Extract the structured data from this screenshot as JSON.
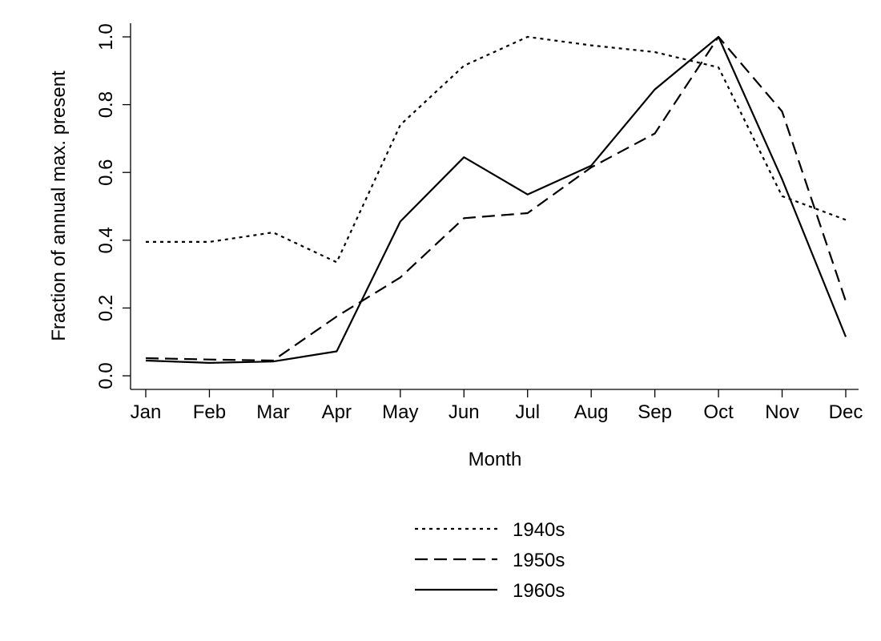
{
  "chart_data": {
    "type": "line",
    "title": "",
    "xlabel": "Month",
    "ylabel": "Fraction of annual max. present",
    "categories": [
      "Jan",
      "Feb",
      "Mar",
      "Apr",
      "May",
      "Jun",
      "Jul",
      "Aug",
      "Sep",
      "Oct",
      "Nov",
      "Dec"
    ],
    "ylim": [
      0,
      1.0
    ],
    "yticks": [
      0.0,
      0.2,
      0.4,
      0.6,
      0.8,
      1.0
    ],
    "ytick_labels": [
      "0.0",
      "0.2",
      "0.4",
      "0.6",
      "0.8",
      "1.0"
    ],
    "grid": false,
    "legend_position": "bottom-center",
    "series": [
      {
        "name": "1940s",
        "style": "dotted",
        "values": [
          0.395,
          0.395,
          0.423,
          0.335,
          0.74,
          0.915,
          1.0,
          0.975,
          0.955,
          0.91,
          0.53,
          0.46
        ]
      },
      {
        "name": "1950s",
        "style": "dashed",
        "values": [
          0.052,
          0.048,
          0.045,
          0.175,
          0.29,
          0.465,
          0.48,
          0.615,
          0.715,
          1.0,
          0.78,
          0.22
        ]
      },
      {
        "name": "1960s",
        "style": "solid",
        "values": [
          0.045,
          0.038,
          0.042,
          0.072,
          0.455,
          0.645,
          0.535,
          0.62,
          0.845,
          1.0,
          0.58,
          0.115
        ]
      }
    ]
  }
}
